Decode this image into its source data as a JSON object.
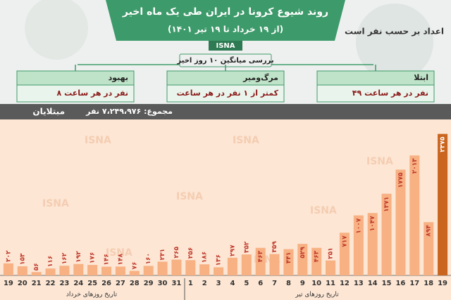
{
  "header": {
    "title": "روند شیوع کرونا در ایران طی یک ماه اخیر",
    "subtitle": "(از ۱۹ خرداد تا ۱۹ تیر ۱۴۰۱)",
    "logo": "ISNA",
    "unit_note": "اعداد بر حسب نفر است",
    "average_note": "بررسی میانگین ۱۰ روز اخیر"
  },
  "boxes": [
    {
      "label": "ابتلا",
      "value": "۴۹ نفر در هر ساعت"
    },
    {
      "label": "مرگ‌ومیر",
      "value": "کمتر از ۱ نفر در هر ساعت"
    },
    {
      "label": "بهبود",
      "value": "۸ نفر در هر ساعت"
    }
  ],
  "chart_data": {
    "type": "bar",
    "title": "مبتلایان",
    "subtitle": "مجموع: ۷،۲۴۹،۹۷۶ نفر",
    "watermark": "ISNA",
    "categories": [
      "19",
      "20",
      "21",
      "22",
      "23",
      "24",
      "25",
      "26",
      "27",
      "28",
      "29",
      "30",
      "31",
      "1",
      "2",
      "3",
      "4",
      "5",
      "6",
      "7",
      "8",
      "9",
      "10",
      "11",
      "12",
      "13",
      "14",
      "15",
      "16",
      "17",
      "18",
      "19"
    ],
    "values": [
      202,
      153,
      56,
      116,
      162,
      192,
      176,
      146,
      148,
      76,
      160,
      231,
      265,
      256,
      186,
      136,
      297,
      352,
      463,
      359,
      441,
      529,
      463,
      251,
      717,
      1007,
      1047,
      1371,
      1775,
      2013,
      894,
      2375
    ],
    "value_labels": [
      "۲۰۲",
      "۱۵۳",
      "۵۶",
      "۱۱۶",
      "۱۶۲",
      "۱۹۲",
      "۱۷۶",
      "۱۴۶",
      "۱۴۸",
      "۷۶",
      "۱۶۰",
      "۲۳۱",
      "۲۶۵",
      "۲۵۶",
      "۱۸۶",
      "۱۳۶",
      "۲۹۷",
      "۳۵۲",
      "۴۶۳",
      "۳۵۹",
      "۴۴۱",
      "۵۲۹",
      "۴۶۳",
      "۲۵۱",
      "۷۱۷",
      "۱۰۰۷",
      "۱۰۴۷",
      "۱۳۷۱",
      "۱۷۷۵",
      "۲۰۱۳",
      "۸۹۴",
      "۲۳۷۵"
    ],
    "x_group_labels": [
      "تاریخ روزهای خرداد",
      "تاریخ روزهای تیر"
    ],
    "color": "#f7b183",
    "last_color": "#c9651f",
    "label_color": "#c0392b",
    "ylim": [
      0,
      2500
    ]
  }
}
